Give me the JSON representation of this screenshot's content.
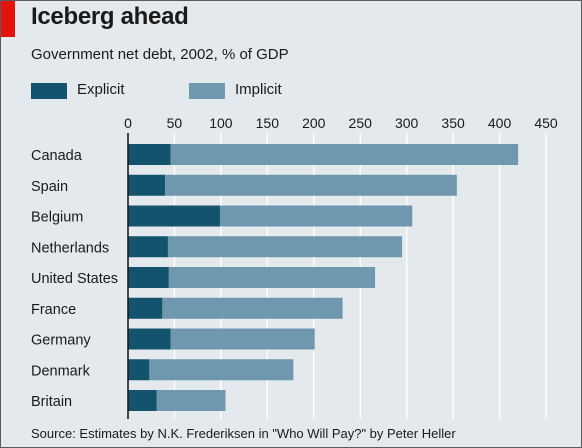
{
  "header": {
    "title": "Iceberg ahead",
    "subtitle": "Government net debt, 2002, % of GDP"
  },
  "legend": [
    {
      "label": "Explicit",
      "color": "#14536e"
    },
    {
      "label": "Implicit",
      "color": "#6f97ad"
    }
  ],
  "footer": {
    "source": "Source: Estimates by N.K. Frederiksen in \"Who Will Pay?\" by Peter Heller"
  },
  "colors": {
    "accent": "#e3120b",
    "explicit": "#14536e",
    "implicit": "#6f97ad",
    "background": "#e4e9ee",
    "gridline": "#ffffff"
  },
  "chart_data": {
    "type": "bar",
    "orientation": "horizontal",
    "stacked": true,
    "title": "Iceberg ahead",
    "subtitle": "Government net debt, 2002, % of GDP",
    "categories": [
      "Canada",
      "Spain",
      "Belgium",
      "Netherlands",
      "United States",
      "France",
      "Germany",
      "Denmark",
      "Britain"
    ],
    "series": [
      {
        "name": "Explicit",
        "values": [
          46,
          40,
          99,
          43,
          44,
          37,
          46,
          23,
          31
        ]
      },
      {
        "name": "Implicit",
        "values": [
          374,
          314,
          207,
          252,
          222,
          194,
          155,
          155,
          74
        ]
      }
    ],
    "totals": [
      420,
      354,
      306,
      295,
      266,
      231,
      201,
      178,
      105
    ],
    "xticks": [
      0,
      50,
      100,
      150,
      200,
      250,
      300,
      350,
      400,
      450
    ],
    "xlim": [
      0,
      450
    ],
    "xaxis_position": "top",
    "grid": true,
    "legend_position": "top-left",
    "xlabel": "",
    "ylabel": ""
  }
}
